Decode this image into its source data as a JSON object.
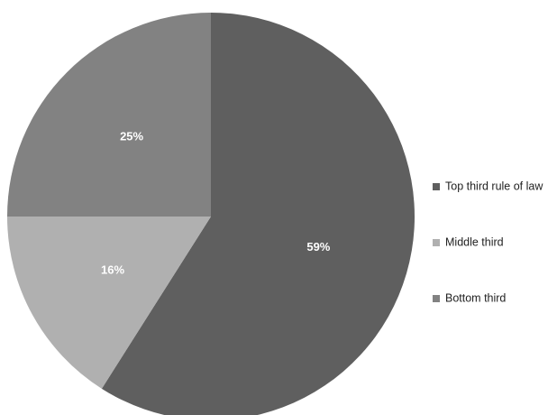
{
  "chart_data": {
    "type": "pie",
    "title": "",
    "slices": [
      {
        "label": "Top third rule of law",
        "value": 59,
        "display": "59%",
        "color": "#5f5f5f"
      },
      {
        "label": "Middle third",
        "value": 16,
        "display": "16%",
        "color": "#b0b0b0"
      },
      {
        "label": "Bottom third",
        "value": 25,
        "display": "25%",
        "color": "#828282"
      }
    ],
    "start_angle": "12 o'clock",
    "direction": "clockwise",
    "legend_position": "right"
  }
}
